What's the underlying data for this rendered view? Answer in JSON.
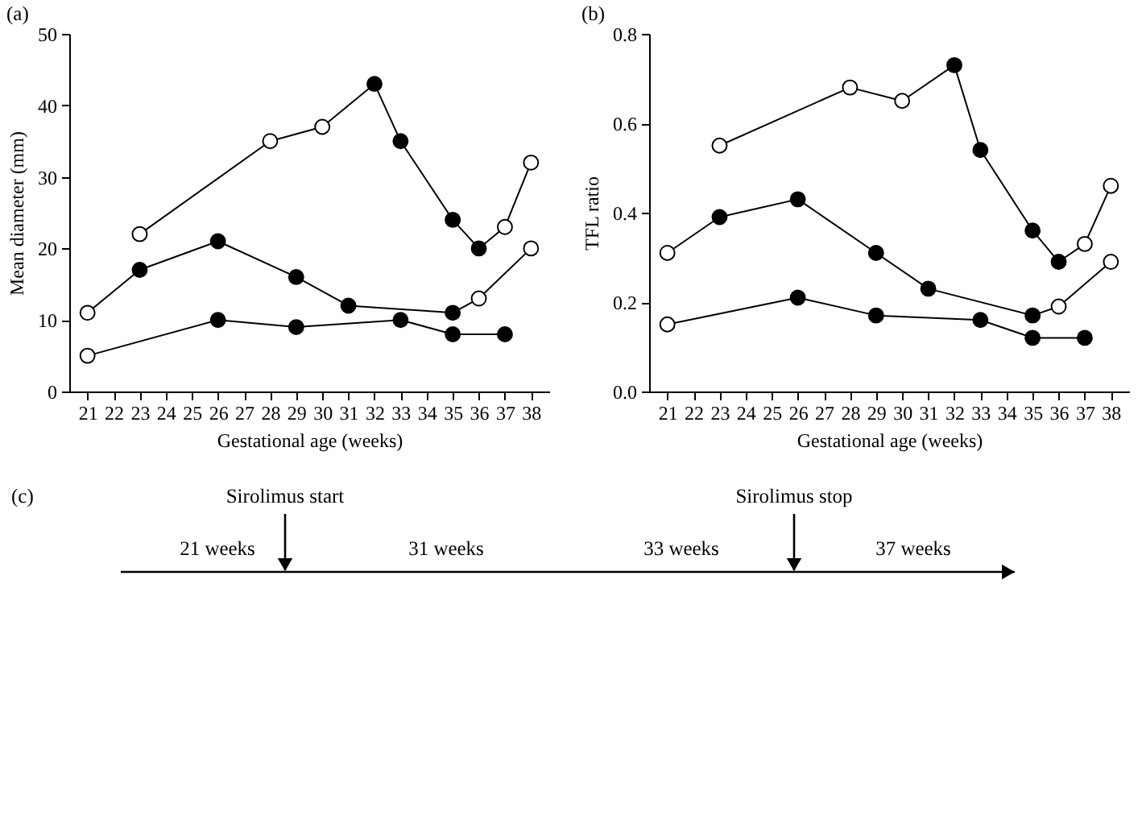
{
  "chart_data": [
    {
      "type": "line",
      "title": "(a)",
      "xlabel": "Gestational age (weeks)",
      "ylabel": "Mean diameter (mm)",
      "xlim": [
        20.3,
        38.7
      ],
      "xticks": [
        21,
        22,
        23,
        24,
        25,
        26,
        27,
        28,
        29,
        30,
        31,
        32,
        33,
        34,
        35,
        36,
        37,
        38
      ],
      "ylim": [
        0,
        50
      ],
      "yticks": [
        0,
        10,
        20,
        30,
        40,
        50
      ],
      "marker": "circle",
      "line_style": "solid",
      "series": [
        {
          "color": "#000000",
          "x": [
            21,
            23,
            26,
            29,
            31,
            35,
            36,
            38
          ],
          "values": [
            11,
            17,
            21,
            16,
            12,
            11,
            13,
            20
          ],
          "colors": [
            "#ffffff",
            "#000000",
            "#000000",
            "#000000",
            "#000000",
            "#000000",
            "#ffffff",
            "#ffffff"
          ]
        },
        {
          "color": "#000000",
          "x": [
            23,
            28,
            30,
            32,
            33,
            35,
            36,
            37,
            38
          ],
          "values": [
            22,
            35,
            37,
            43,
            35,
            24,
            20,
            23,
            32
          ],
          "colors": [
            "#ffffff",
            "#ffffff",
            "#ffffff",
            "#000000",
            "#000000",
            "#000000",
            "#000000",
            "#ffffff",
            "#ffffff"
          ]
        },
        {
          "color": "#000000",
          "x": [
            21,
            26,
            29,
            33,
            35,
            37
          ],
          "values": [
            5,
            10,
            9,
            10,
            8,
            8
          ],
          "colors": [
            "#ffffff",
            "#000000",
            "#000000",
            "#000000",
            "#000000",
            "#000000"
          ]
        }
      ]
    },
    {
      "type": "line",
      "title": "(b)",
      "xlabel": "Gestational age (weeks)",
      "ylabel": "TFL ratio",
      "xlim": [
        20.3,
        38.7
      ],
      "xticks": [
        21,
        22,
        23,
        24,
        25,
        26,
        27,
        28,
        29,
        30,
        31,
        32,
        33,
        34,
        35,
        36,
        37,
        38
      ],
      "ylim": [
        0,
        0.8
      ],
      "yticks": [
        {
          "value": 0,
          "label": "0.0"
        },
        0.2,
        0.4,
        0.6,
        0.8
      ],
      "marker": "circle",
      "line_style": "solid",
      "series": [
        {
          "color": "#000000",
          "x": [
            21,
            23,
            26,
            29,
            31,
            35,
            36,
            38
          ],
          "values": [
            0.31,
            0.39,
            0.43,
            0.31,
            0.23,
            0.17,
            0.19,
            0.29
          ],
          "colors": [
            "#ffffff",
            "#000000",
            "#000000",
            "#000000",
            "#000000",
            "#000000",
            "#ffffff",
            "#ffffff"
          ]
        },
        {
          "color": "#000000",
          "x": [
            23,
            28,
            30,
            32,
            33,
            35,
            36,
            37,
            38
          ],
          "values": [
            0.55,
            0.68,
            0.65,
            0.73,
            0.54,
            0.36,
            0.29,
            0.33,
            0.46
          ],
          "colors": [
            "#ffffff",
            "#ffffff",
            "#ffffff",
            "#000000",
            "#000000",
            "#000000",
            "#000000",
            "#ffffff",
            "#ffffff"
          ]
        },
        {
          "color": "#000000",
          "x": [
            21,
            26,
            29,
            33,
            35,
            37
          ],
          "values": [
            0.15,
            0.21,
            0.17,
            0.16,
            0.12,
            0.12
          ],
          "colors": [
            "#ffffff",
            "#000000",
            "#000000",
            "#000000",
            "#000000",
            "#000000"
          ]
        }
      ]
    },
    {
      "type": "other",
      "title": "(c)",
      "categories": [
        "21 weeks",
        "31 weeks",
        "33 weeks",
        "37 weeks"
      ],
      "annotations": [
        "Sirolimus start",
        "Sirolimus stop"
      ]
    }
  ]
}
